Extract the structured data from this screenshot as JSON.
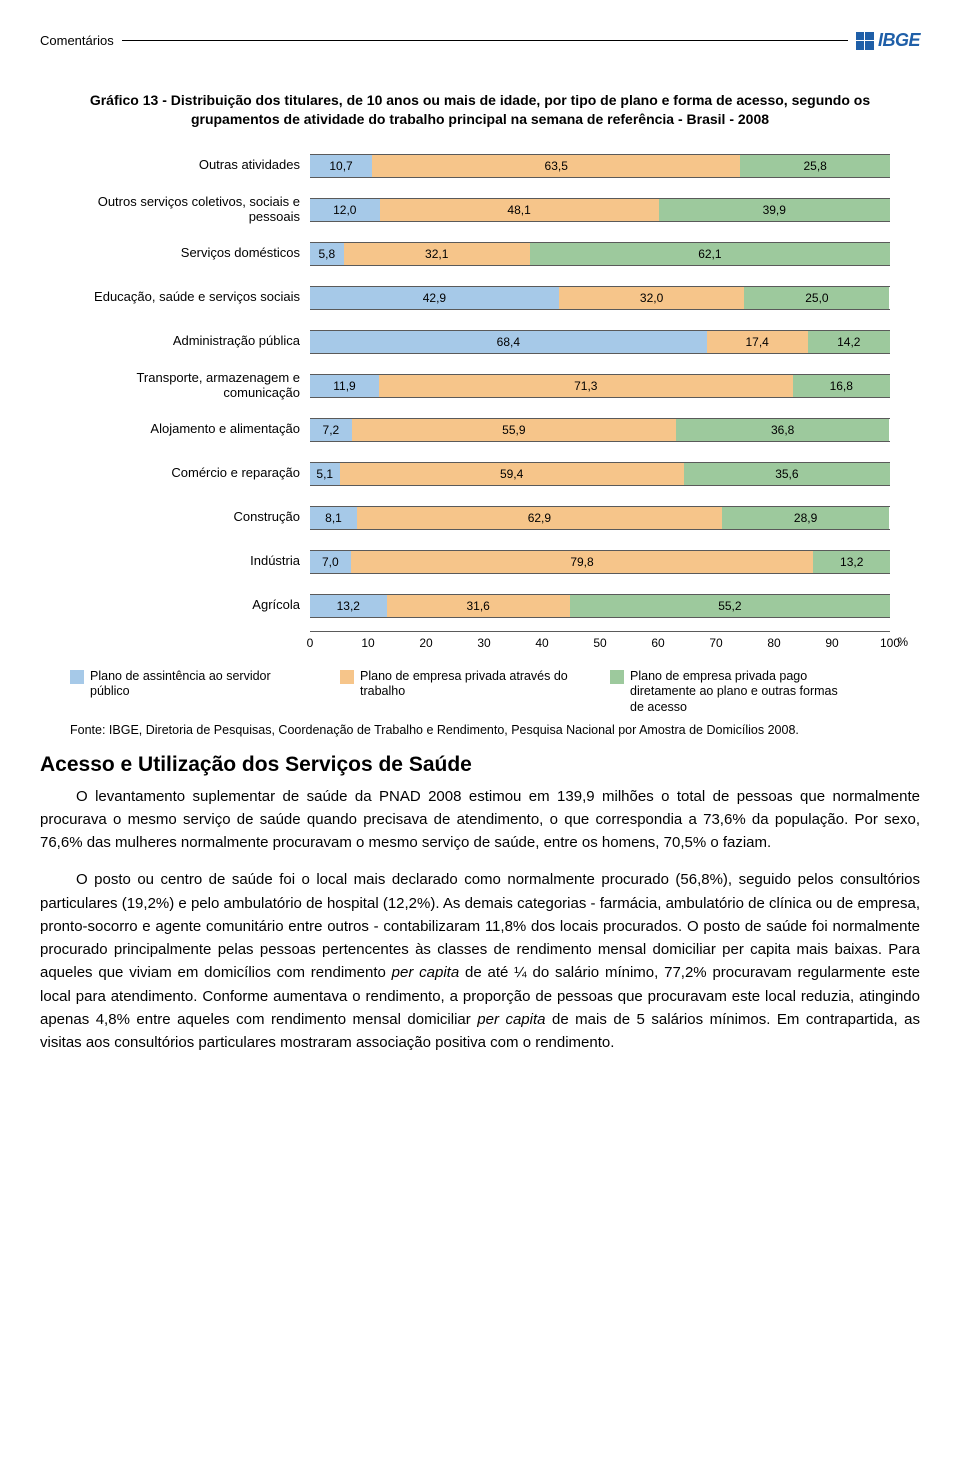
{
  "header": {
    "label": "Comentários",
    "logo_text": "IBGE",
    "logo_color": "#1f5fa8"
  },
  "chart": {
    "type": "stacked-bar-horizontal",
    "title": "Gráfico 13 - Distribuição dos titulares, de 10 anos ou mais de idade, por tipo de plano e forma de acesso, segundo os grupamentos de atividade do trabalho principal na semana de referência - Brasil - 2008",
    "colors": {
      "seg1": "#a6c9e8",
      "seg2": "#f6c58a",
      "seg3": "#9dc99d",
      "border": "#5a5a5a",
      "background": "#ffffff"
    },
    "categories": [
      {
        "label": "Outras atividades",
        "values": [
          10.7,
          63.5,
          25.8
        ]
      },
      {
        "label": "Outros serviços coletivos, sociais e pessoais",
        "values": [
          12.0,
          48.1,
          39.9
        ]
      },
      {
        "label": "Serviços domésticos",
        "values": [
          5.8,
          32.1,
          62.1
        ]
      },
      {
        "label": "Educação, saúde e serviços sociais",
        "values": [
          42.9,
          32.0,
          25.0
        ]
      },
      {
        "label": "Administração pública",
        "values": [
          68.4,
          17.4,
          14.2
        ]
      },
      {
        "label": "Transporte, armazenagem e comunicação",
        "values": [
          11.9,
          71.3,
          16.8
        ]
      },
      {
        "label": "Alojamento e alimentação",
        "values": [
          7.2,
          55.9,
          36.8
        ]
      },
      {
        "label": "Comércio e reparação",
        "values": [
          5.1,
          59.4,
          35.6
        ]
      },
      {
        "label": "Construção",
        "values": [
          8.1,
          62.9,
          28.9
        ]
      },
      {
        "label": "Indústria",
        "values": [
          7.0,
          79.8,
          13.2
        ]
      },
      {
        "label": "Agrícola",
        "values": [
          13.2,
          31.6,
          55.2
        ]
      }
    ],
    "xlim": [
      0,
      100
    ],
    "xtick_step": 10,
    "x_unit": "%",
    "label_fontsize": 13,
    "value_fontsize": 12
  },
  "legend": {
    "items": [
      {
        "color": "#a6c9e8",
        "label": "Plano de assintência ao servidor público"
      },
      {
        "color": "#f6c58a",
        "label": "Plano de empresa privada através do trabalho"
      },
      {
        "color": "#9dc99d",
        "label": "Plano  de empresa privada pago diretamente ao plano e outras formas de acesso"
      }
    ]
  },
  "source": "Fonte: IBGE, Diretoria de Pesquisas, Coordenação de Trabalho e Rendimento, Pesquisa Nacional por Amostra de Domicílios 2008.",
  "section": {
    "heading": "Acesso e Utilização dos Serviços de Saúde",
    "p1": "O levantamento suplementar de saúde da PNAD 2008 estimou em 139,9 milhões o total de pessoas que normalmente procurava o mesmo serviço de saúde quando precisava de atendimento, o que correspondia a 73,6% da população. Por sexo, 76,6% das mulheres normalmente procuravam o mesmo serviço de saúde, entre os homens, 70,5% o faziam.",
    "p2_a": "O posto ou centro de saúde foi o local mais declarado como normalmente procurado (56,8%), seguido pelos consultórios particulares (19,2%) e pelo ambulatório de hospital (12,2%). As demais categorias - farmácia, ambulatório de clínica ou de empresa, pronto-socorro e agente comunitário entre outros - contabilizaram 11,8% dos locais procurados. O posto de saúde foi normalmente procurado principalmente pelas pessoas pertencentes às classes de rendimento mensal domiciliar per capita mais baixas. Para aqueles que viviam em domicílios com rendimento ",
    "p2_it1": "per capita",
    "p2_b": " de até ¼ do salário mínimo, 77,2% procuravam regularmente este local para atendimento. Conforme aumentava o rendimento, a proporção de pessoas que procuravam este local reduzia, atingindo apenas 4,8% entre aqueles com rendimento mensal domiciliar ",
    "p2_it2": "per capita",
    "p2_c": " de mais de 5 salários mínimos. Em contrapartida, as visitas aos consultórios particulares mostraram associação positiva com o rendimento."
  }
}
